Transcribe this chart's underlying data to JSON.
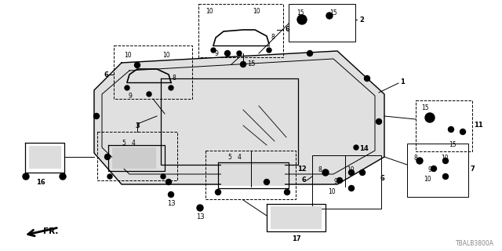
{
  "diagram_code": "TBALB3800A",
  "bg_color": "#ffffff",
  "lc": "#000000",
  "tc": "#000000",
  "fig_width": 6.4,
  "fig_height": 3.2,
  "dpi": 100
}
